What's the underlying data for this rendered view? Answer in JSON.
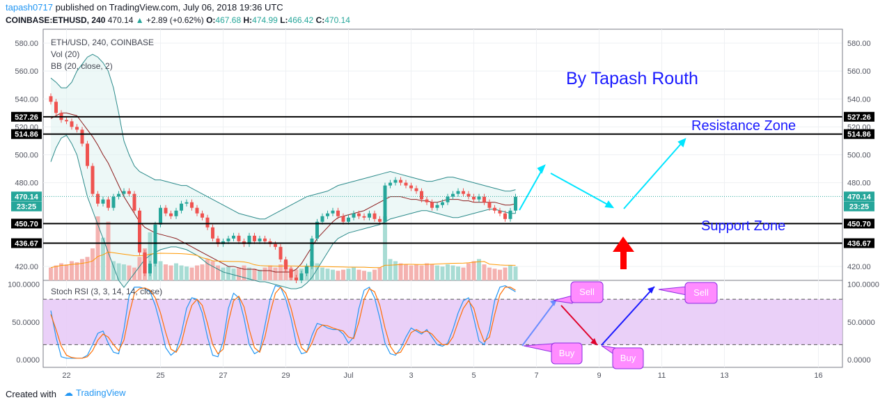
{
  "header": {
    "user": "tapash0717",
    "published_text": " published on TradingView.com, July 06, 2018 19:36 UTC"
  },
  "symbol_line": {
    "symbol": "COINBASE:ETHUSD, 240",
    "last": "470.14",
    "change": "+2.89 (+0.62%)",
    "o_label": "O:",
    "o": "467.68",
    "h_label": "H:",
    "h": "474.99",
    "l_label": "L:",
    "l": "466.42",
    "c_label": "C:",
    "c": "470.14"
  },
  "legend": {
    "title": "ETH/USD, 240, COINBASE",
    "vol": "Vol (20)",
    "bb": "BB (20, close, 2)",
    "rsi": "Stoch RSI (3, 3, 14, 14, close)"
  },
  "annotations": {
    "author": "By Tapash Routh",
    "resistance": "Resistance Zone",
    "support": "Support Zone",
    "sell1": "Sell",
    "sell2": "Sell",
    "buy1": "Buy",
    "buy2": "Buy"
  },
  "footer": {
    "created_with": "Created with",
    "brand": "TradingView"
  },
  "colors": {
    "up": "#26a69a",
    "down": "#ef5350",
    "bb": "#2a8a8a",
    "ma": "#8b1a1a",
    "cyan": "#00e5ff",
    "annotation_blue": "#1a1aff",
    "callout": "#ff8cff",
    "rsi_band": "#e6c8f7"
  },
  "chart_data": [
    {
      "type": "candlestick",
      "price_axis": {
        "min": 410,
        "max": 590,
        "ticks": [
          "580.00",
          "560.00",
          "540.00",
          "520.00",
          "500.00",
          "480.00",
          "420.00"
        ]
      },
      "price_labels": [
        {
          "value": 527.26,
          "text": "527.26",
          "style": "black"
        },
        {
          "value": 514.86,
          "text": "514.86",
          "style": "black"
        },
        {
          "value": 470.14,
          "text": "470.14",
          "style": "green"
        },
        {
          "value": 463.0,
          "text": "23:25",
          "style": "green"
        },
        {
          "value": 450.7,
          "text": "450.70",
          "style": "black"
        },
        {
          "value": 436.67,
          "text": "436.67",
          "style": "black"
        }
      ],
      "horizontal_levels": [
        527.26,
        514.86,
        450.7,
        436.67
      ],
      "last_price": 470.14,
      "x_axis": {
        "ticks": [
          {
            "label": "22",
            "bar": 3
          },
          {
            "label": "25",
            "bar": 21
          },
          {
            "label": "27",
            "bar": 33
          },
          {
            "label": "29",
            "bar": 45
          },
          {
            "label": "Jul",
            "bar": 57
          },
          {
            "label": "3",
            "bar": 69
          },
          {
            "label": "5",
            "bar": 81
          },
          {
            "label": "7",
            "bar": 93
          },
          {
            "label": "9",
            "bar": 105
          },
          {
            "label": "11",
            "bar": 117
          },
          {
            "label": "13",
            "bar": 129
          },
          {
            "label": "16",
            "bar": 147
          }
        ]
      },
      "close": [
        538,
        530,
        525,
        524,
        520,
        518,
        508,
        492,
        472,
        465,
        468,
        462,
        470,
        472,
        474,
        472,
        460,
        430,
        415,
        422,
        450,
        462,
        458,
        456,
        460,
        465,
        466,
        462,
        458,
        455,
        448,
        440,
        436,
        438,
        440,
        442,
        438,
        436,
        442,
        438,
        440,
        438,
        436,
        434,
        425,
        418,
        412,
        410,
        415,
        420,
        440,
        452,
        456,
        458,
        460,
        456,
        452,
        455,
        458,
        456,
        455,
        458,
        454,
        452,
        478,
        480,
        482,
        480,
        478,
        476,
        474,
        468,
        466,
        462,
        464,
        466,
        470,
        472,
        474,
        472,
        470,
        468,
        470,
        466,
        462,
        460,
        458,
        454,
        460,
        470
      ],
      "volume": [
        12,
        14,
        16,
        15,
        18,
        17,
        20,
        22,
        30,
        60,
        40,
        55,
        18,
        16,
        15,
        14,
        12,
        22,
        30,
        45,
        25,
        18,
        15,
        14,
        16,
        14,
        13,
        12,
        14,
        15,
        20,
        18,
        14,
        12,
        13,
        11,
        12,
        14,
        12,
        11,
        10,
        12,
        14,
        12,
        15,
        18,
        12,
        10,
        11,
        14,
        18,
        16,
        12,
        11,
        10,
        9,
        10,
        11,
        12,
        10,
        9,
        8,
        10,
        12,
        60,
        20,
        18,
        16,
        15,
        14,
        15,
        14,
        16,
        15,
        14,
        13,
        15,
        14,
        13,
        12,
        16,
        18,
        20,
        15,
        12,
        11,
        10,
        12,
        14,
        13
      ],
      "bb_upper": [
        555,
        552,
        548,
        548,
        552,
        560,
        565,
        570,
        572,
        570,
        566,
        560,
        548,
        530,
        510,
        500,
        492,
        488,
        486,
        484,
        482,
        482,
        481,
        480,
        479,
        478,
        478,
        476,
        474,
        472,
        470,
        468,
        466,
        464,
        462,
        460,
        458,
        457,
        456,
        455,
        454,
        454,
        456,
        458,
        460,
        462,
        464,
        466,
        468,
        470,
        471,
        472,
        473,
        474,
        476,
        478,
        479,
        480,
        481,
        482,
        483,
        484,
        485,
        486,
        487,
        488,
        487,
        486,
        485,
        484,
        483,
        482,
        481,
        481,
        482,
        483,
        484,
        484,
        483,
        482,
        481,
        480,
        479,
        478,
        477,
        476,
        475,
        474,
        474,
        475
      ],
      "bb_lower": [
        495,
        505,
        512,
        514,
        508,
        500,
        485,
        470,
        460,
        450,
        440,
        430,
        420,
        410,
        405,
        410,
        415,
        420,
        425,
        428,
        430,
        432,
        433,
        434,
        434,
        433,
        432,
        430,
        428,
        425,
        422,
        420,
        418,
        416,
        415,
        414,
        413,
        412,
        411,
        410,
        409,
        409,
        408,
        407,
        406,
        405,
        404,
        404,
        405,
        408,
        412,
        418,
        424,
        430,
        436,
        440,
        442,
        444,
        445,
        446,
        447,
        448,
        449,
        450,
        452,
        454,
        455,
        456,
        457,
        458,
        459,
        460,
        460,
        459,
        458,
        457,
        456,
        455,
        455,
        456,
        457,
        458,
        459,
        460,
        461,
        461,
        460,
        459,
        458,
        458
      ],
      "bb_mid": [
        526,
        528,
        530,
        530,
        529,
        528,
        523,
        518,
        513,
        507,
        500,
        494,
        486,
        478,
        470,
        464,
        458,
        452,
        448,
        446,
        444,
        443,
        442,
        441,
        440,
        438,
        436,
        434,
        432,
        430,
        428,
        426,
        424,
        422,
        420,
        420,
        419,
        418,
        418,
        418,
        417,
        417,
        417,
        416,
        416,
        416,
        416,
        418,
        422,
        428,
        434,
        440,
        444,
        448,
        452,
        455,
        456,
        457,
        458,
        459,
        460,
        462,
        464,
        466,
        468,
        470,
        470,
        470,
        469,
        468,
        468,
        467,
        467,
        466,
        466,
        467,
        468,
        468,
        468,
        467,
        467,
        466,
        466,
        466,
        466,
        466,
        465,
        464,
        464,
        465
      ]
    },
    {
      "type": "line",
      "name": "Stoch RSI (3, 3, 14, 14, close)",
      "y_axis": {
        "min": -10,
        "max": 105,
        "ticks": [
          "100.0000",
          "50.0000",
          "0.0000"
        ]
      },
      "band": [
        20,
        80
      ],
      "k": [
        65,
        30,
        4,
        2,
        2,
        2,
        2,
        6,
        20,
        35,
        38,
        22,
        10,
        8,
        40,
        85,
        96,
        96,
        94,
        90,
        72,
        46,
        16,
        6,
        12,
        35,
        68,
        82,
        80,
        62,
        30,
        6,
        4,
        24,
        68,
        88,
        82,
        55,
        20,
        8,
        12,
        45,
        80,
        98,
        96,
        80,
        55,
        22,
        8,
        10,
        32,
        48,
        46,
        42,
        40,
        40,
        34,
        22,
        30,
        68,
        92,
        96,
        82,
        55,
        22,
        8,
        6,
        15,
        30,
        42,
        38,
        34,
        40,
        30,
        20,
        18,
        22,
        40,
        62,
        78,
        82,
        55,
        25,
        20,
        40,
        78,
        96,
        98,
        94,
        90
      ],
      "d": [
        60,
        40,
        18,
        6,
        3,
        2,
        2,
        4,
        12,
        26,
        34,
        30,
        20,
        12,
        26,
        60,
        88,
        94,
        95,
        92,
        82,
        62,
        36,
        14,
        10,
        22,
        50,
        72,
        80,
        72,
        48,
        20,
        8,
        14,
        50,
        78,
        84,
        70,
        40,
        16,
        10,
        30,
        62,
        88,
        96,
        88,
        68,
        40,
        16,
        10,
        22,
        40,
        46,
        45,
        42,
        40,
        38,
        30,
        28,
        50,
        80,
        94,
        90,
        72,
        42,
        18,
        8,
        10,
        22,
        36,
        40,
        36,
        38,
        34,
        26,
        20,
        20,
        30,
        50,
        68,
        78,
        68,
        42,
        24,
        30,
        60,
        86,
        96,
        96,
        92
      ]
    }
  ]
}
